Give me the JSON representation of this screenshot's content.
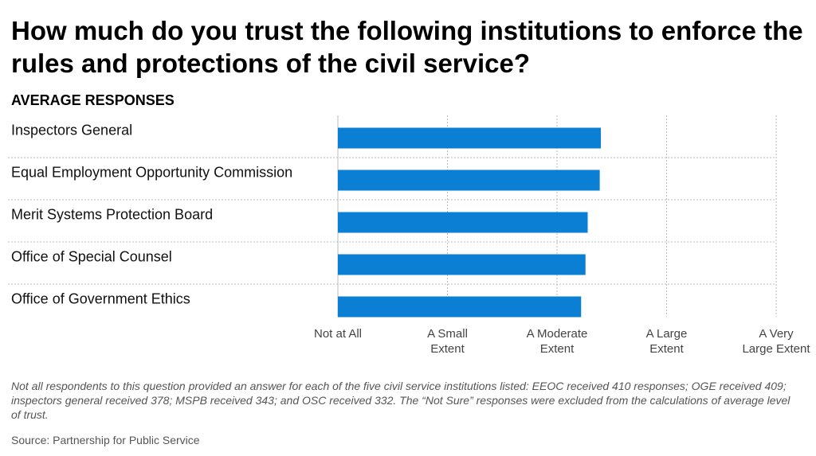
{
  "title": "How much do you trust the following institutions to enforce the rules and protections of the civil service?",
  "subtitle": "AVERAGE RESPONSES",
  "footnote": "Not all respondents to this question provided an answer for each of the five civil service institutions listed: EEOC received 410 responses; OGE received 409; inspectors general received 378; MSPB received 343; and OSC received 332. The “Not Sure” responses were excluded from the calculations of average level of trust.",
  "source": "Source: Partnership for Public Service",
  "colors": {
    "bar": "#0a7fd4",
    "grid": "#bbbbbb",
    "label": "#111111",
    "tick": "#444444"
  },
  "chart_data": {
    "type": "bar",
    "orientation": "horizontal",
    "categories": [
      "Inspectors General",
      "Equal Employment Opportunity Commission",
      "Merit Systems Protection Board",
      "Office of Special Counsel",
      "Office of Government Ethics"
    ],
    "values": [
      2.4,
      2.39,
      2.28,
      2.26,
      2.22
    ],
    "xlim": [
      0,
      4
    ],
    "xticks": [
      {
        "value": 0,
        "label": [
          "Not at All"
        ]
      },
      {
        "value": 1,
        "label": [
          "A Small",
          "Extent"
        ]
      },
      {
        "value": 2,
        "label": [
          "A Moderate",
          "Extent"
        ]
      },
      {
        "value": 3,
        "label": [
          "A Large",
          "Extent"
        ]
      },
      {
        "value": 4,
        "label": [
          "A Very",
          "Large Extent"
        ]
      }
    ],
    "grid": true,
    "legend": "none"
  }
}
